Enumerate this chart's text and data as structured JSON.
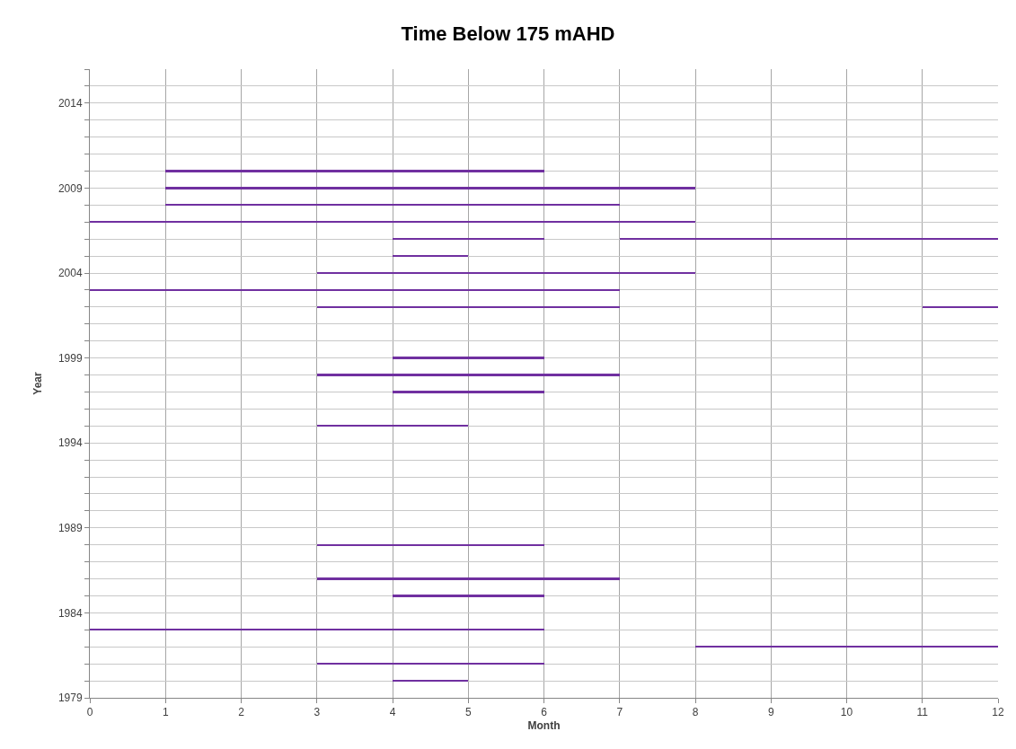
{
  "chart_data": {
    "type": "bar",
    "orientation": "horizontal",
    "title": "Time Below 175 mAHD",
    "xlabel": "Month",
    "ylabel": "Year",
    "x": [
      1980,
      1981,
      1982,
      1983,
      1985,
      1986,
      1988,
      1995,
      1997,
      1998,
      1999,
      2002,
      2003,
      2004,
      2005,
      2006,
      2007,
      2008,
      2009,
      2010
    ],
    "series": [
      {
        "color": "#7030a0",
        "base": [
          4,
          3,
          8,
          0,
          4,
          3,
          3,
          3,
          4,
          3,
          4,
          3,
          0,
          3,
          4,
          4,
          0,
          1,
          1,
          1
        ],
        "values": [
          1,
          3,
          4,
          6,
          2,
          4,
          3,
          2,
          2,
          4,
          2,
          4,
          7,
          5,
          1,
          2,
          8,
          6,
          7,
          5
        ]
      },
      {
        "color": "#7030a0",
        "base": [
          null,
          null,
          null,
          null,
          null,
          null,
          null,
          null,
          null,
          null,
          null,
          11,
          null,
          null,
          null,
          7,
          null,
          null,
          null,
          null
        ],
        "values": [
          null,
          null,
          null,
          null,
          null,
          null,
          null,
          null,
          null,
          null,
          null,
          1,
          null,
          null,
          null,
          5,
          null,
          null,
          null,
          null
        ]
      }
    ],
    "xlim": [
      0,
      12
    ],
    "xticks": [
      0,
      1,
      2,
      3,
      4,
      5,
      6,
      7,
      8,
      9,
      10,
      11,
      12
    ],
    "ylim": [
      1979,
      2016
    ],
    "yticks": [
      1979,
      {
        "value": 1980,
        "label": null
      },
      {
        "value": 1981,
        "label": null
      },
      {
        "value": 1982,
        "label": null
      },
      {
        "value": 1983,
        "label": null
      },
      1984,
      {
        "value": 1985,
        "label": null
      },
      {
        "value": 1986,
        "label": null
      },
      {
        "value": 1987,
        "label": null
      },
      {
        "value": 1988,
        "label": null
      },
      1989,
      {
        "value": 1990,
        "label": null
      },
      {
        "value": 1991,
        "label": null
      },
      {
        "value": 1992,
        "label": null
      },
      {
        "value": 1993,
        "label": null
      },
      1994,
      {
        "value": 1995,
        "label": null
      },
      {
        "value": 1996,
        "label": null
      },
      {
        "value": 1997,
        "label": null
      },
      {
        "value": 1998,
        "label": null
      },
      1999,
      {
        "value": 2000,
        "label": null
      },
      {
        "value": 2001,
        "label": null
      },
      {
        "value": 2002,
        "label": null
      },
      {
        "value": 2003,
        "label": null
      },
      2004,
      {
        "value": 2005,
        "label": null
      },
      {
        "value": 2006,
        "label": null
      },
      {
        "value": 2007,
        "label": null
      },
      {
        "value": 2008,
        "label": null
      },
      2009,
      {
        "value": 2010,
        "label": null
      },
      {
        "value": 2011,
        "label": null
      },
      {
        "value": 2012,
        "label": null
      },
      {
        "value": 2013,
        "label": null
      },
      2014,
      {
        "value": 2015,
        "label": null
      },
      {
        "value": 2016,
        "label": null
      }
    ],
    "grid": true
  }
}
